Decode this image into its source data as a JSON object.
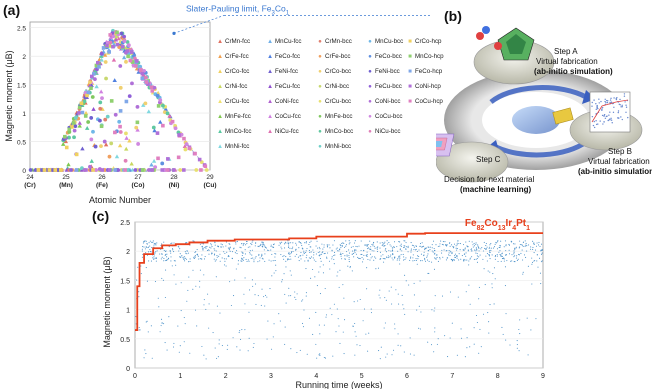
{
  "panel_labels": {
    "a": "(a)",
    "b": "(b)",
    "c": "(c)"
  },
  "chart_data": [
    {
      "type": "scatter",
      "ylabel": "Magnetic moment (μB)",
      "xlabel": "Atomic Number",
      "ylim": [
        0,
        2.6
      ],
      "xlim": [
        24,
        29
      ],
      "yticks": [
        "0",
        "0.5",
        "1",
        "1.5",
        "2",
        "2.5"
      ],
      "xticks": [
        {
          "num": "24",
          "el": "(Cr)"
        },
        {
          "num": "25",
          "el": "(Mn)"
        },
        {
          "num": "26",
          "el": "(Fe)"
        },
        {
          "num": "27",
          "el": "(Co)"
        },
        {
          "num": "28",
          "el": "(Ni)"
        },
        {
          "num": "29",
          "el": "(Cu)"
        }
      ],
      "annotation": {
        "text": "Slater-Pauling limit, Fe",
        "sub1": "3",
        "mid": "Co",
        "sub2": "1",
        "x": 28.0,
        "y": 2.4
      },
      "slater_pauling": {
        "x": [
          24.9,
          25.3,
          25.7,
          26.0,
          26.3,
          26.6,
          27.0,
          27.5,
          28.0,
          28.5,
          28.9
        ],
        "y": [
          0.5,
          1.0,
          1.6,
          2.1,
          2.4,
          2.35,
          1.9,
          1.4,
          0.8,
          0.35,
          0.05
        ]
      },
      "legend": [
        {
          "label": "CrMn-fcc",
          "shape": "tri",
          "color": "#e07060"
        },
        {
          "label": "CrFe-fcc",
          "shape": "tri",
          "color": "#f0a050"
        },
        {
          "label": "CrCo-fcc",
          "shape": "tri",
          "color": "#f0d060"
        },
        {
          "label": "CrNi-fcc",
          "shape": "tri",
          "color": "#c8d860"
        },
        {
          "label": "CrCu-fcc",
          "shape": "tri",
          "color": "#f0e070"
        },
        {
          "label": "MnFe-fcc",
          "shape": "tri",
          "color": "#80c850"
        },
        {
          "label": "MnCo-fcc",
          "shape": "tri",
          "color": "#58c8a0"
        },
        {
          "label": "MnNi-fcc",
          "shape": "tri",
          "color": "#80d8e0"
        },
        {
          "label": "MnCu-fcc",
          "shape": "tri",
          "color": "#70b0e8"
        },
        {
          "label": "FeCo-fcc",
          "shape": "tri",
          "color": "#5080e0"
        },
        {
          "label": "FeNi-fcc",
          "shape": "tri",
          "color": "#7060d0"
        },
        {
          "label": "FeCu-fcc",
          "shape": "tri",
          "color": "#9050d0"
        },
        {
          "label": "CoNi-fcc",
          "shape": "tri",
          "color": "#b060d0"
        },
        {
          "label": "CoCu-fcc",
          "shape": "tri",
          "color": "#d080e0"
        },
        {
          "label": "NiCu-fcc",
          "shape": "tri",
          "color": "#e070b0"
        },
        {
          "label": "CrMn-bcc",
          "shape": "circ",
          "color": "#e08070"
        },
        {
          "label": "CrFe-bcc",
          "shape": "circ",
          "color": "#f0a060"
        },
        {
          "label": "CrCo-bcc",
          "shape": "circ",
          "color": "#f0d070"
        },
        {
          "label": "CrNi-bcc",
          "shape": "circ",
          "color": "#c8d870"
        },
        {
          "label": "CrCu-bcc",
          "shape": "circ",
          "color": "#e8e070"
        },
        {
          "label": "MnFe-bcc",
          "shape": "circ",
          "color": "#80c860"
        },
        {
          "label": "MnCo-bcc",
          "shape": "circ",
          "color": "#60c8a0"
        },
        {
          "label": "MnNi-bcc",
          "shape": "circ",
          "color": "#70d0c8"
        },
        {
          "label": "MnCu-bcc",
          "shape": "circ",
          "color": "#70b8e8"
        },
        {
          "label": "FeCo-bcc",
          "shape": "circ",
          "color": "#6090e0"
        },
        {
          "label": "FeNi-bcc",
          "shape": "circ",
          "color": "#7060d0"
        },
        {
          "label": "FeCu-bcc",
          "shape": "circ",
          "color": "#9060d8"
        },
        {
          "label": "CoNi-bcc",
          "shape": "circ",
          "color": "#b070d8"
        },
        {
          "label": "CoCu-bcc",
          "shape": "circ",
          "color": "#d088e0"
        },
        {
          "label": "NiCu-bcc",
          "shape": "circ",
          "color": "#e080b8"
        },
        {
          "label": "CrCo-hcp",
          "shape": "sq",
          "color": "#f0d060"
        },
        {
          "label": "MnCo-hcp",
          "shape": "sq",
          "color": "#90d070"
        },
        {
          "label": "FeCo-hcp",
          "shape": "sq",
          "color": "#80a8e8"
        },
        {
          "label": "CoNi-hcp",
          "shape": "sq",
          "color": "#b070d8"
        },
        {
          "label": "CoCu-hcp",
          "shape": "sq",
          "color": "#e080c0"
        }
      ]
    },
    {
      "type": "scatter",
      "ylabel": "Magnetic moment (μB)",
      "xlabel": "Running time (weeks)",
      "ylim": [
        0,
        2.5
      ],
      "xlim": [
        0,
        9
      ],
      "yticks": [
        "0",
        "0.5",
        "1",
        "1.5",
        "2",
        "2.5"
      ],
      "xticks": [
        "0",
        "1",
        "2",
        "3",
        "4",
        "5",
        "6",
        "7",
        "8",
        "9"
      ],
      "composition": {
        "parts": [
          [
            "Fe",
            "82"
          ],
          [
            "Co",
            "13"
          ],
          [
            "Ir",
            "4"
          ],
          [
            "Pt",
            "1"
          ]
        ]
      },
      "best_curve": {
        "x": [
          0,
          0.05,
          0.1,
          0.2,
          0.4,
          0.6,
          0.9,
          1.2,
          1.6,
          2.2,
          3.4,
          4.0,
          6.0,
          6.4,
          9.0
        ],
        "y": [
          0.65,
          1.4,
          1.8,
          1.95,
          2.05,
          2.1,
          2.12,
          2.15,
          2.18,
          2.2,
          2.22,
          2.25,
          2.3,
          2.31,
          2.31
        ]
      },
      "band_mean": 2.0,
      "band_spread": 0.18,
      "accent_color": "#e8401c",
      "point_color": "#4a90c8"
    }
  ],
  "diagram": {
    "step_a": {
      "title": "Step A",
      "line1": "Virtual fabrication",
      "line2": "(ab-initio simulation)"
    },
    "step_b": {
      "title": "Step B",
      "line1": "Virtual fabrication",
      "line2": "(ab-initio simulation)"
    },
    "step_c": {
      "title": "Step C",
      "line1": "Decision for next material",
      "line2": "(machine learning)"
    }
  }
}
